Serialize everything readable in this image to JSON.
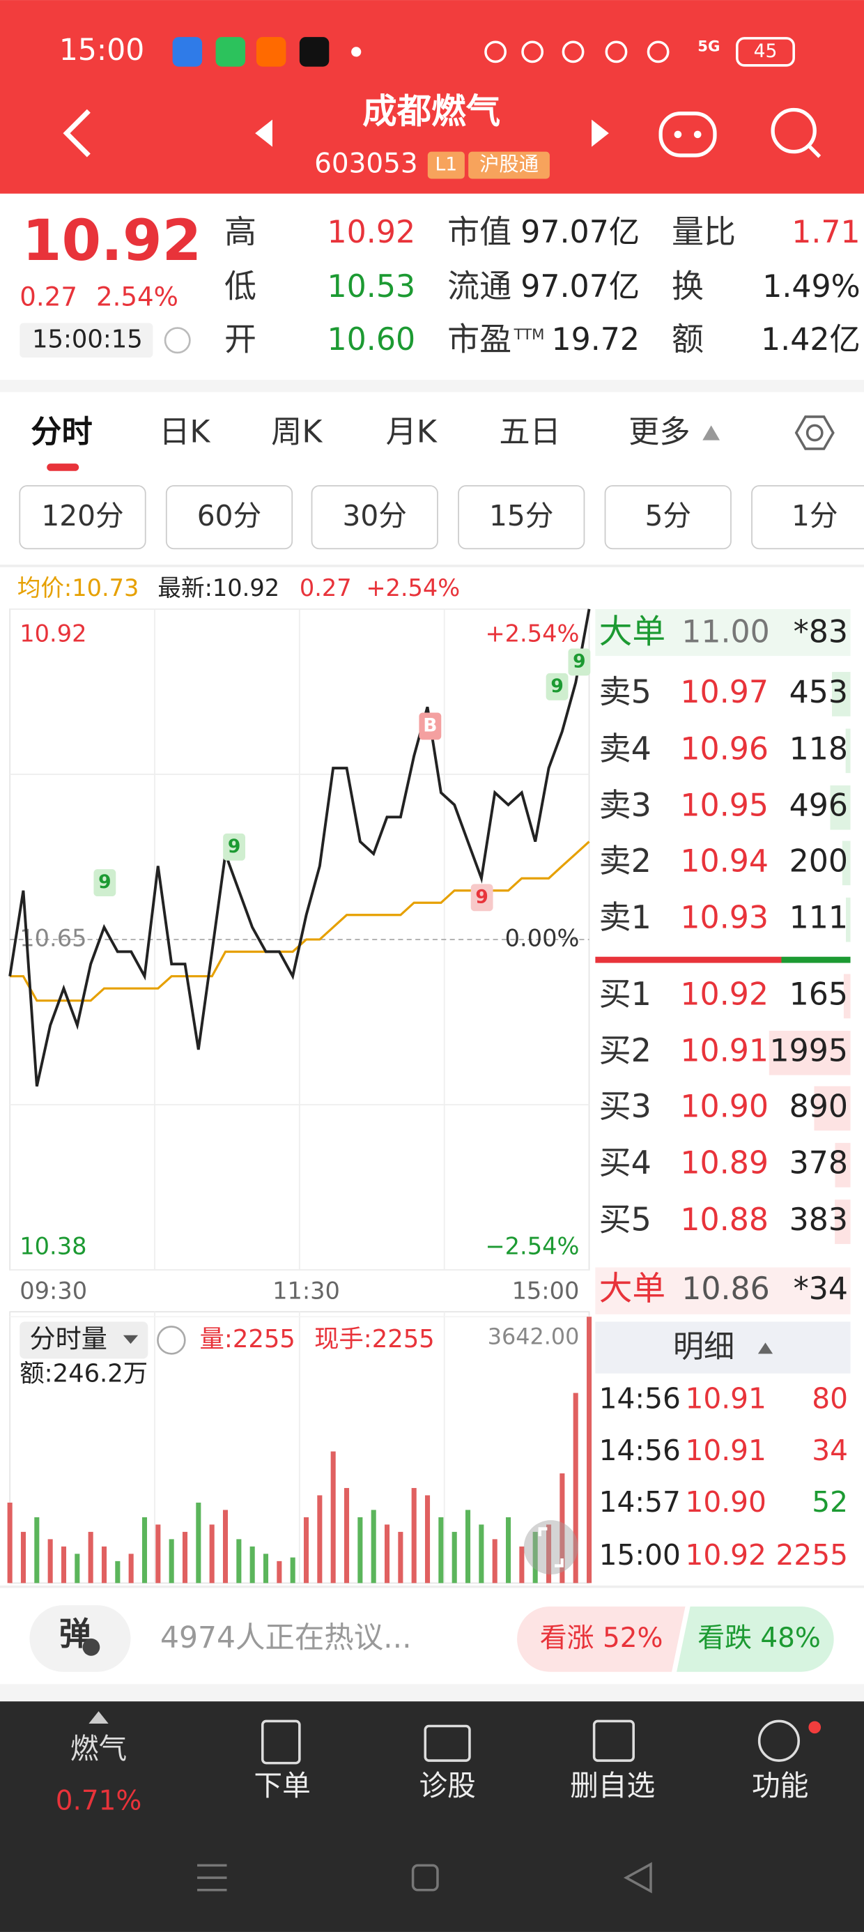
{
  "status_bar": {
    "time": "15:00",
    "network": "5G",
    "battery": "45"
  },
  "header": {
    "title": "成都燃气",
    "code": "603053",
    "level": "L1",
    "connect": "沪股通"
  },
  "quote": {
    "price": "10.92",
    "change": "0.27",
    "change_pct": "2.54%",
    "time": "15:00:15",
    "stats": [
      [
        {
          "label": "高",
          "value": "10.92"
        },
        {
          "label": "市值",
          "value": "97.07亿"
        },
        {
          "label": "量比",
          "value": "1.71"
        }
      ],
      [
        {
          "label": "低",
          "value": "10.53"
        },
        {
          "label": "流通",
          "value": "97.07亿"
        },
        {
          "label": "换",
          "value": "1.49%"
        }
      ],
      [
        {
          "label": "开",
          "value": "10.60"
        },
        {
          "label": "市盈",
          "sup": "TTM",
          "value": "19.72"
        },
        {
          "label": "额",
          "value": "1.42亿"
        }
      ]
    ]
  },
  "tabs": [
    "分时",
    "日K",
    "周K",
    "月K",
    "五日",
    "更多"
  ],
  "periods": [
    "120分",
    "60分",
    "30分",
    "15分",
    "5分",
    "1分"
  ],
  "summary": {
    "avg": "均价:10.73",
    "latest": "最新:10.92",
    "change": "0.27",
    "change_pct": "+2.54%"
  },
  "chart_data": [
    {
      "type": "line",
      "categories": [
        "09:30",
        null,
        null,
        null,
        null,
        null,
        null,
        null,
        null,
        null,
        null,
        null,
        null,
        null,
        null,
        null,
        null,
        null,
        null,
        null,
        null,
        null,
        "11:30",
        null,
        null,
        null,
        null,
        null,
        null,
        null,
        null,
        null,
        null,
        null,
        null,
        null,
        null,
        null,
        null,
        null,
        null,
        null,
        null,
        "15:00"
      ],
      "series": [
        {
          "color": "#222222",
          "values": [
            10.62,
            10.69,
            10.53,
            10.58,
            10.61,
            10.58,
            10.63,
            10.66,
            10.64,
            10.64,
            10.62,
            10.71,
            10.63,
            10.63,
            10.56,
            10.64,
            10.72,
            10.69,
            10.66,
            10.64,
            10.64,
            10.62,
            10.67,
            10.71,
            10.79,
            10.79,
            10.73,
            10.72,
            10.75,
            10.75,
            10.8,
            10.84,
            10.77,
            10.76,
            10.73,
            10.7,
            10.77,
            10.76,
            10.77,
            10.73,
            10.79,
            10.82,
            10.86,
            10.92
          ]
        },
        {
          "color": "#e6a000",
          "values": [
            10.62,
            10.62,
            10.6,
            10.6,
            10.6,
            10.6,
            10.6,
            10.61,
            10.61,
            10.61,
            10.61,
            10.61,
            10.62,
            10.62,
            10.62,
            10.62,
            10.64,
            10.64,
            10.64,
            10.64,
            10.64,
            10.64,
            10.65,
            10.65,
            10.66,
            10.67,
            10.67,
            10.67,
            10.67,
            10.67,
            10.68,
            10.68,
            10.68,
            10.69,
            10.69,
            10.69,
            10.69,
            10.69,
            10.7,
            10.7,
            10.7,
            10.71,
            10.72,
            10.73
          ]
        }
      ],
      "ylim": [
        10.38,
        10.92
      ],
      "yticks": [
        10.38,
        10.65,
        10.92
      ],
      "y2lim": [
        -2.54,
        2.54
      ],
      "y2ticks": [
        {
          "value": -2.54,
          "label": "−2.54%"
        },
        {
          "value": 0,
          "label": "0.00%"
        },
        {
          "value": 2.54,
          "label": "+2.54%"
        }
      ],
      "grid": true,
      "annotations": [
        "9",
        "9",
        "B",
        "9",
        "9",
        "9"
      ]
    },
    {
      "type": "bar",
      "title": "分时量",
      "volume": "量:2255",
      "last": "现手:2255",
      "amount": "额:246.2万",
      "values": [
        1100,
        700,
        900,
        600,
        500,
        400,
        700,
        500,
        300,
        400,
        900,
        800,
        600,
        700,
        1100,
        800,
        1000,
        600,
        500,
        400,
        300,
        350,
        900,
        1200,
        1800,
        1300,
        900,
        1000,
        800,
        700,
        1300,
        1200,
        900,
        700,
        1000,
        800,
        600,
        900,
        500,
        700,
        800,
        1500,
        2600,
        3642
      ],
      "ylim": [
        0,
        3642
      ],
      "yticks": [
        {
          "value": 3642,
          "label": "3642.00"
        }
      ]
    }
  ],
  "order_book": {
    "big_sell": {
      "label": "大单",
      "price": "11.00",
      "count": "*83"
    },
    "asks": [
      {
        "label": "卖5",
        "price": "10.97",
        "volume": 453
      },
      {
        "label": "卖4",
        "price": "10.96",
        "volume": 118
      },
      {
        "label": "卖3",
        "price": "10.95",
        "volume": 496
      },
      {
        "label": "卖2",
        "price": "10.94",
        "volume": 200
      },
      {
        "label": "卖1",
        "price": "10.93",
        "volume": 111
      }
    ],
    "bids": [
      {
        "label": "买1",
        "price": "10.92",
        "volume": 165
      },
      {
        "label": "买2",
        "price": "10.91",
        "volume": 1995
      },
      {
        "label": "买3",
        "price": "10.90",
        "volume": 890
      },
      {
        "label": "买4",
        "price": "10.89",
        "volume": 378
      },
      {
        "label": "买5",
        "price": "10.88",
        "volume": 383
      }
    ],
    "big_buy": {
      "label": "大单",
      "price": "10.86",
      "count": "*34"
    },
    "detail_title": "明细",
    "trades": [
      {
        "time": "14:56",
        "price": "10.91",
        "volume": "80"
      },
      {
        "time": "14:56",
        "price": "10.91",
        "volume": "34"
      },
      {
        "time": "14:57",
        "price": "10.90",
        "volume": "52"
      },
      {
        "time": "15:00",
        "price": "10.92",
        "volume": "2255"
      }
    ]
  },
  "footer": {
    "button": "弹",
    "discussion": "4974人正在热议...",
    "bull": "看涨 52%",
    "bear": "看跌 48%"
  },
  "nav": {
    "sector": "燃气",
    "sector_change": "0.71%",
    "items": [
      "下单",
      "诊股",
      "删自选",
      "功能"
    ]
  }
}
